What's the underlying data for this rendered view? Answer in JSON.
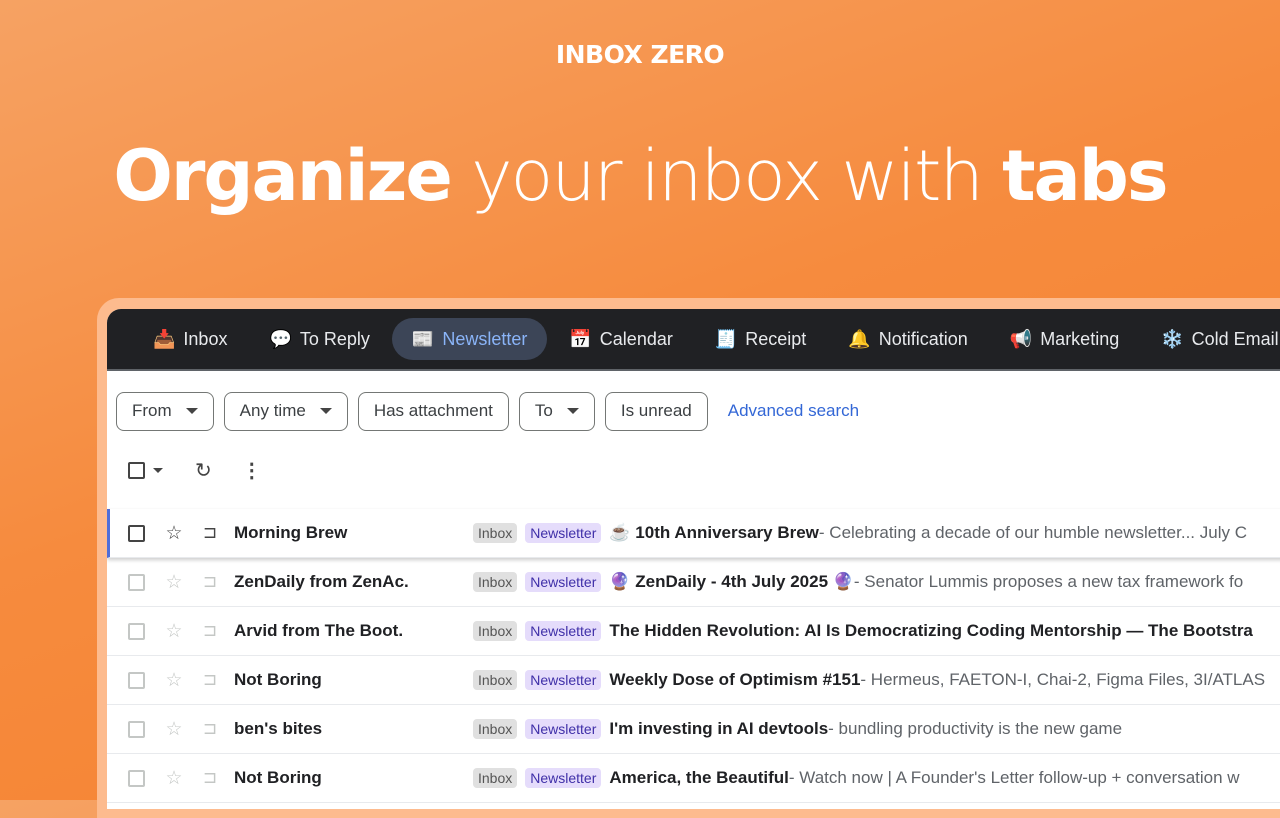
{
  "brand": "INBOX ZERO",
  "headline": {
    "part1": "Organize",
    "part2": " your inbox with ",
    "part3": "tabs"
  },
  "tabs": [
    {
      "icon": "📥",
      "label": "Inbox",
      "active": false
    },
    {
      "icon": "💬",
      "label": "To Reply",
      "active": false
    },
    {
      "icon": "📰",
      "label": "Newsletter",
      "active": true
    },
    {
      "icon": "📅",
      "label": "Calendar",
      "active": false
    },
    {
      "icon": "🧾",
      "label": "Receipt",
      "active": false
    },
    {
      "icon": "🔔",
      "label": "Notification",
      "active": false
    },
    {
      "icon": "📢",
      "label": "Marketing",
      "active": false
    },
    {
      "icon": "❄️",
      "label": "Cold Email",
      "active": false
    }
  ],
  "filters": {
    "from": "From",
    "any_time": "Any time",
    "has_attachment": "Has attachment",
    "to": "To",
    "is_unread": "Is unread",
    "advanced": "Advanced search"
  },
  "emails": [
    {
      "sender": "Morning Brew",
      "labels": [
        "Inbox",
        "Newsletter"
      ],
      "subject": "☕ 10th Anniversary Brew",
      "snippet": " - Celebrating a decade of our humble newsletter... July C"
    },
    {
      "sender": "ZenDaily from ZenAc.",
      "labels": [
        "Inbox",
        "Newsletter"
      ],
      "subject": "🔮 ZenDaily - 4th July 2025 🔮",
      "snippet": " - Senator Lummis proposes a new tax framework fo"
    },
    {
      "sender": "Arvid from The Boot.",
      "labels": [
        "Inbox",
        "Newsletter"
      ],
      "subject": "The Hidden Revolution: AI Is Democratizing Coding Mentorship — The Bootstra",
      "snippet": ""
    },
    {
      "sender": "Not Boring",
      "labels": [
        "Inbox",
        "Newsletter"
      ],
      "subject": "Weekly Dose of Optimism #151",
      "snippet": " - Hermeus, FAETON-I, Chai-2, Figma Files, 3I/ATLAS"
    },
    {
      "sender": "ben's bites",
      "labels": [
        "Inbox",
        "Newsletter"
      ],
      "subject": "I'm investing in AI devtools",
      "snippet": " - bundling productivity is the new game"
    },
    {
      "sender": "Not Boring",
      "labels": [
        "Inbox",
        "Newsletter"
      ],
      "subject": "America, the Beautiful",
      "snippet": " - Watch now | A Founder's Letter follow-up + conversation w"
    }
  ]
}
